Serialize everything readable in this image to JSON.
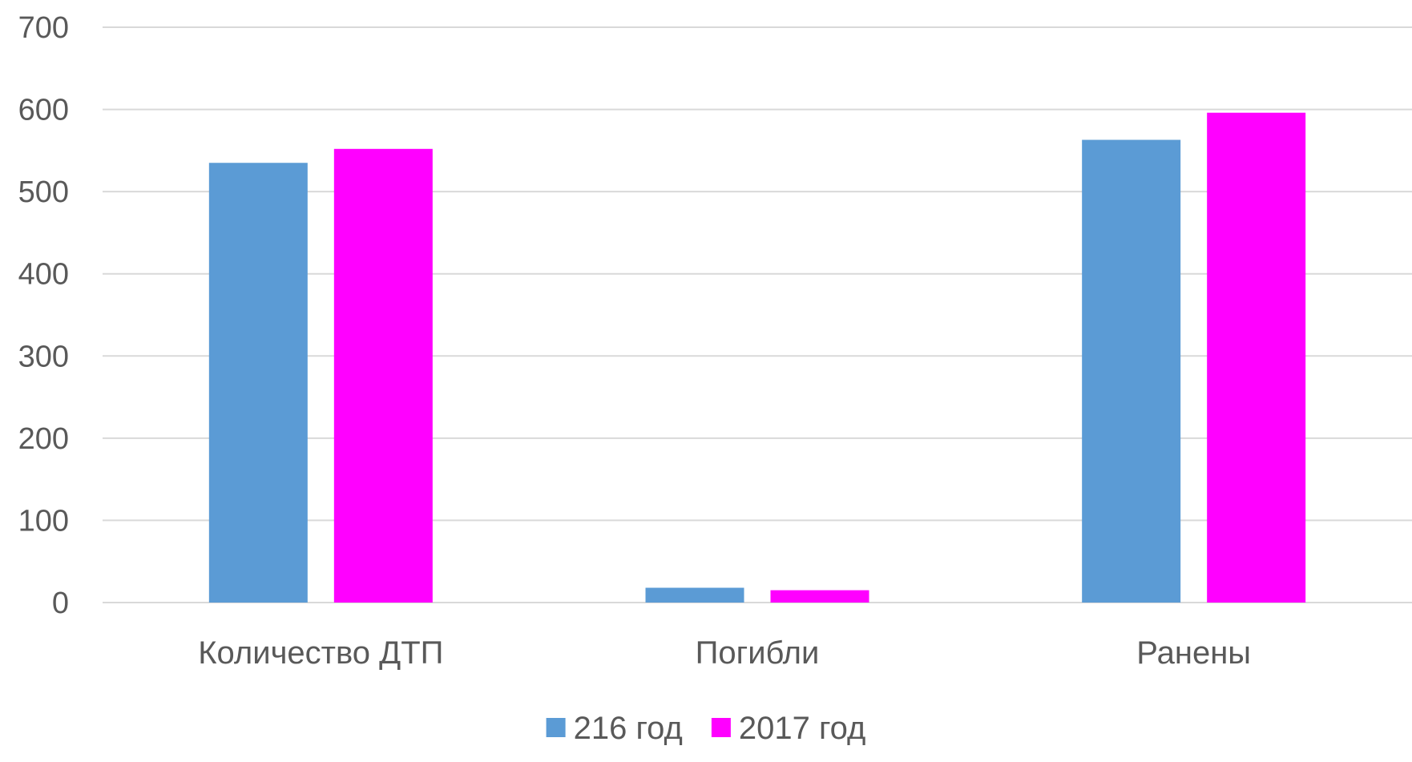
{
  "chart_data": {
    "type": "bar",
    "title": "",
    "xlabel": "",
    "ylabel": "",
    "categories": [
      "Количество ДТП",
      "Погибли",
      "Ранены"
    ],
    "series": [
      {
        "name": "216 год",
        "color": "#5b9bd5",
        "values": [
          535,
          18,
          563
        ]
      },
      {
        "name": "2017 год",
        "color": "#ff00ff",
        "values": [
          552,
          15,
          596
        ]
      }
    ],
    "ylim": [
      0,
      700
    ],
    "yticks": [
      0,
      100,
      200,
      300,
      400,
      500,
      600,
      700
    ],
    "grid": true,
    "legend_position": "bottom"
  }
}
